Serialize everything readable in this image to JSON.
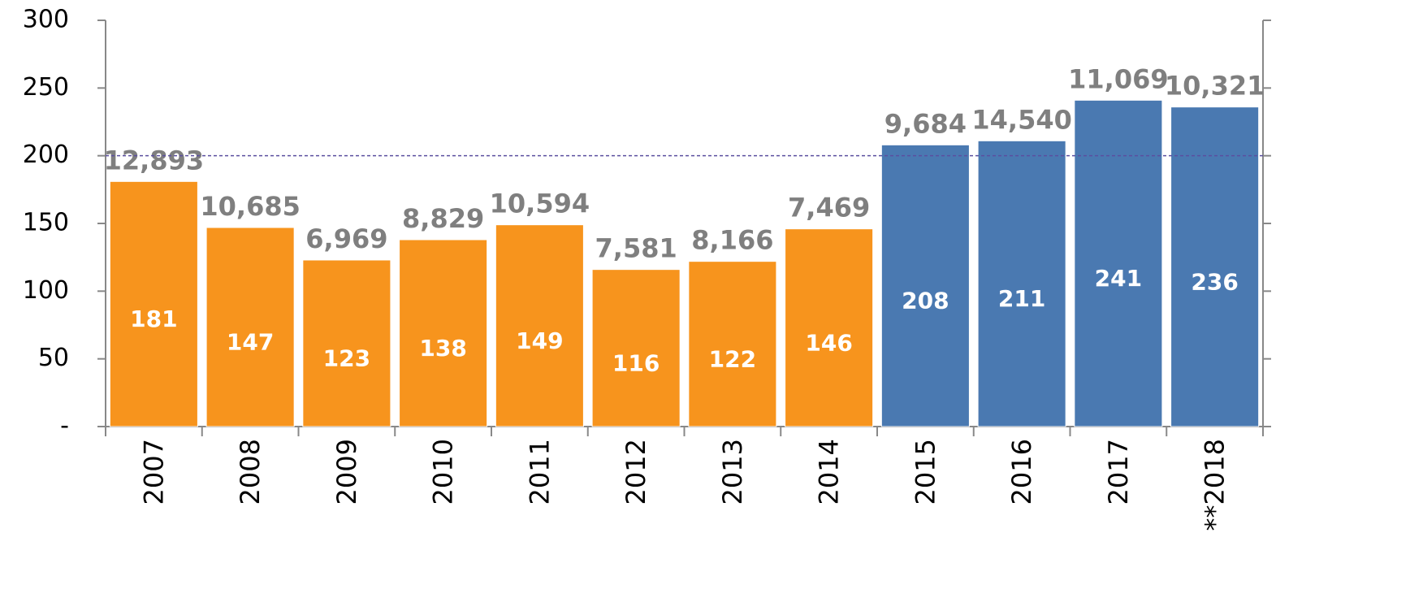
{
  "chart_data": {
    "type": "bar",
    "categories": [
      "2007",
      "2008",
      "2009",
      "2010",
      "2011",
      "2012",
      "2013",
      "2014",
      "2015",
      "2016",
      "2017",
      "**2018"
    ],
    "values": [
      181,
      147,
      123,
      138,
      149,
      116,
      122,
      146,
      208,
      211,
      241,
      236
    ],
    "colors": [
      "#f7941d",
      "#f7941d",
      "#f7941d",
      "#f7941d",
      "#f7941d",
      "#f7941d",
      "#f7941d",
      "#f7941d",
      "#4a79b1",
      "#4a79b1",
      "#4a79b1",
      "#4a79b1"
    ],
    "top_labels": [
      "12,893",
      "10,685",
      "6,969",
      "8,829",
      "10,594",
      "7,581",
      "8,166",
      "7,469",
      "9,684",
      "14,540",
      "11,069",
      "10,321"
    ],
    "ylim": [
      0,
      300
    ],
    "yticks": [
      {
        "value": 0,
        "label": "-"
      },
      50,
      100,
      150,
      200,
      250,
      300
    ],
    "reference_line": 200,
    "grid": false
  }
}
